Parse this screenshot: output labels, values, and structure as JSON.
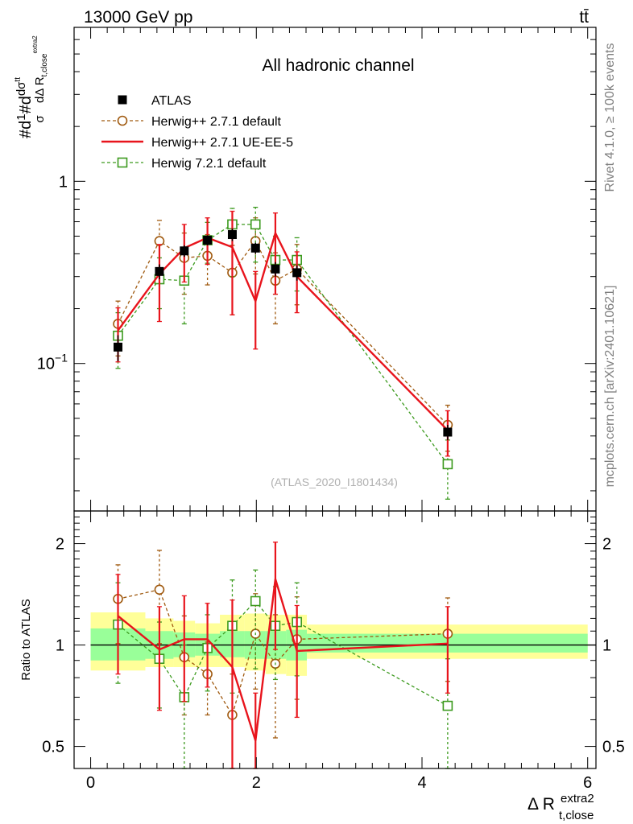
{
  "header": {
    "energy_label": "13000 GeV pp",
    "process_label": "tt̄"
  },
  "side_labels": {
    "rivet": "Rivet 4.1.0, ≥ 100k events",
    "mcplots": "mcplots.cern.ch [arXiv:2401.10621]"
  },
  "watermark": "(ATLAS_2020_I1801434)",
  "chart_data": [
    {
      "type": "line",
      "panel": "main",
      "title": "All hadronic channel",
      "ylabel_parts": {
        "main": "#d",
        "frac": "1",
        "sigma": "σ",
        "mid": "#d",
        "d": "dσ",
        "tt": "tt",
        "den": "dΔ R",
        "sub": "t,close",
        "sup": "extra2"
      },
      "yscale": "log",
      "ylim": [
        0.0155,
        7.0
      ],
      "xlim": [
        -0.2,
        6.1
      ],
      "yticks": [
        {
          "v": 1,
          "label": "1"
        },
        {
          "v": 0.1,
          "label": "10",
          "exp": "−1"
        }
      ],
      "x": [
        0.33,
        0.83,
        1.13,
        1.41,
        1.71,
        1.99,
        2.23,
        2.49,
        4.31
      ],
      "series": [
        {
          "name": "ATLAS",
          "color": "#000000",
          "values": [
            0.123,
            0.32,
            0.415,
            0.475,
            0.51,
            0.43,
            0.33,
            0.315,
            0.042
          ],
          "err": [
            0.02,
            0.03,
            0.03,
            0.03,
            0.04,
            0.03,
            0.03,
            0.03,
            0.004
          ]
        },
        {
          "name": "Herwig++ 2.7.1 default",
          "color": "#a05a10",
          "values": [
            0.165,
            0.47,
            0.38,
            0.39,
            0.315,
            0.47,
            0.285,
            0.33,
            0.046
          ],
          "err_lo": [
            0.055,
            0.14,
            0.14,
            0.12,
            0.13,
            0.16,
            0.12,
            0.12,
            0.013
          ],
          "err_hi": [
            0.055,
            0.14,
            0.14,
            0.12,
            0.13,
            0.16,
            0.12,
            0.12,
            0.013
          ]
        },
        {
          "name": "Herwig++ 2.7.1 UE-EE-5",
          "color": "#e8141c",
          "values": [
            0.152,
            0.31,
            0.43,
            0.49,
            0.435,
            0.22,
            0.52,
            0.3,
            0.043
          ],
          "err_lo": [
            0.05,
            0.14,
            0.15,
            0.14,
            0.25,
            0.1,
            0.28,
            0.11,
            0.012
          ],
          "err_hi": [
            0.05,
            0.14,
            0.15,
            0.14,
            0.25,
            0.1,
            0.15,
            0.11,
            0.012
          ]
        },
        {
          "name": "Herwig 7.2.1 default",
          "color": "#3c9a1e",
          "values": [
            0.142,
            0.29,
            0.285,
            0.475,
            0.58,
            0.58,
            0.37,
            0.37,
            0.028
          ],
          "err_lo": [
            0.048,
            0.09,
            0.12,
            0.12,
            0.28,
            0.22,
            0.13,
            0.12,
            0.01
          ],
          "err_hi": [
            0.048,
            0.09,
            0.12,
            0.12,
            0.13,
            0.14,
            0.13,
            0.12,
            0.01
          ]
        }
      ],
      "legend": [
        "ATLAS",
        "Herwig++ 2.7.1 default",
        "Herwig++ 2.7.1 UE-EE-5",
        "Herwig 7.2.1 default"
      ]
    },
    {
      "type": "line",
      "panel": "ratio",
      "ylabel": "Ratio to ATLAS",
      "xlabel": "Δ R",
      "xlabel_sub": "t,close",
      "xlabel_sup": "extra2",
      "yscale": "log",
      "ylim": [
        0.43,
        2.5
      ],
      "xlim": [
        -0.2,
        6.1
      ],
      "yticks": [
        {
          "v": 2,
          "label": "2"
        },
        {
          "v": 1,
          "label": "1"
        },
        {
          "v": 0.5,
          "label": "0.5"
        }
      ],
      "xticks": [
        {
          "v": 0,
          "label": "0"
        },
        {
          "v": 2,
          "label": "2"
        },
        {
          "v": 4,
          "label": "4"
        },
        {
          "v": 6,
          "label": "6"
        }
      ],
      "bands": {
        "edges": [
          0.0,
          0.66,
          1.0,
          1.26,
          1.56,
          1.86,
          2.11,
          2.36,
          2.61,
          6.0
        ],
        "yellow_lo": [
          0.84,
          0.86,
          0.86,
          0.86,
          0.86,
          0.84,
          0.82,
          0.81,
          0.91
        ],
        "yellow_hi": [
          1.25,
          1.2,
          1.18,
          1.16,
          1.23,
          1.24,
          1.23,
          1.23,
          1.15
        ],
        "green_lo": [
          0.9,
          0.91,
          0.92,
          0.93,
          0.92,
          0.91,
          0.91,
          0.9,
          0.95
        ],
        "green_hi": [
          1.12,
          1.1,
          1.09,
          1.08,
          1.1,
          1.1,
          1.1,
          1.11,
          1.08
        ]
      },
      "x": [
        0.33,
        0.83,
        1.13,
        1.41,
        1.71,
        1.99,
        2.23,
        2.49,
        4.31
      ],
      "series": [
        {
          "name": "Herwig++ 2.7.1 default",
          "color": "#a05a10",
          "values": [
            1.37,
            1.46,
            0.92,
            0.82,
            0.62,
            1.08,
            0.88,
            1.04,
            1.08
          ],
          "err_lo": [
            0.36,
            0.45,
            0.3,
            0.2,
            0.2,
            0.34,
            0.35,
            0.35,
            0.3
          ],
          "err_hi": [
            0.36,
            0.45,
            0.3,
            0.2,
            0.2,
            0.34,
            0.35,
            0.35,
            0.3
          ]
        },
        {
          "name": "Herwig++ 2.7.1 UE-EE-5",
          "color": "#e8141c",
          "values": [
            1.22,
            0.97,
            1.04,
            1.04,
            0.86,
            0.52,
            1.57,
            0.96,
            1.01
          ],
          "err_lo": [
            0.4,
            0.33,
            0.36,
            0.29,
            0.5,
            0.2,
            0.6,
            0.35,
            0.29
          ],
          "err_hi": [
            0.4,
            0.33,
            0.36,
            0.29,
            0.5,
            0.2,
            0.45,
            0.35,
            0.29
          ]
        },
        {
          "name": "Herwig 7.2.1 default",
          "color": "#3c9a1e",
          "values": [
            1.15,
            0.91,
            0.7,
            0.98,
            1.14,
            1.35,
            1.14,
            1.17,
            0.66
          ],
          "err_lo": [
            0.38,
            0.26,
            0.3,
            0.25,
            0.42,
            0.5,
            0.35,
            0.36,
            0.25
          ],
          "err_hi": [
            0.38,
            0.26,
            0.3,
            0.25,
            0.42,
            0.32,
            0.35,
            0.36,
            0.25
          ]
        }
      ]
    }
  ]
}
